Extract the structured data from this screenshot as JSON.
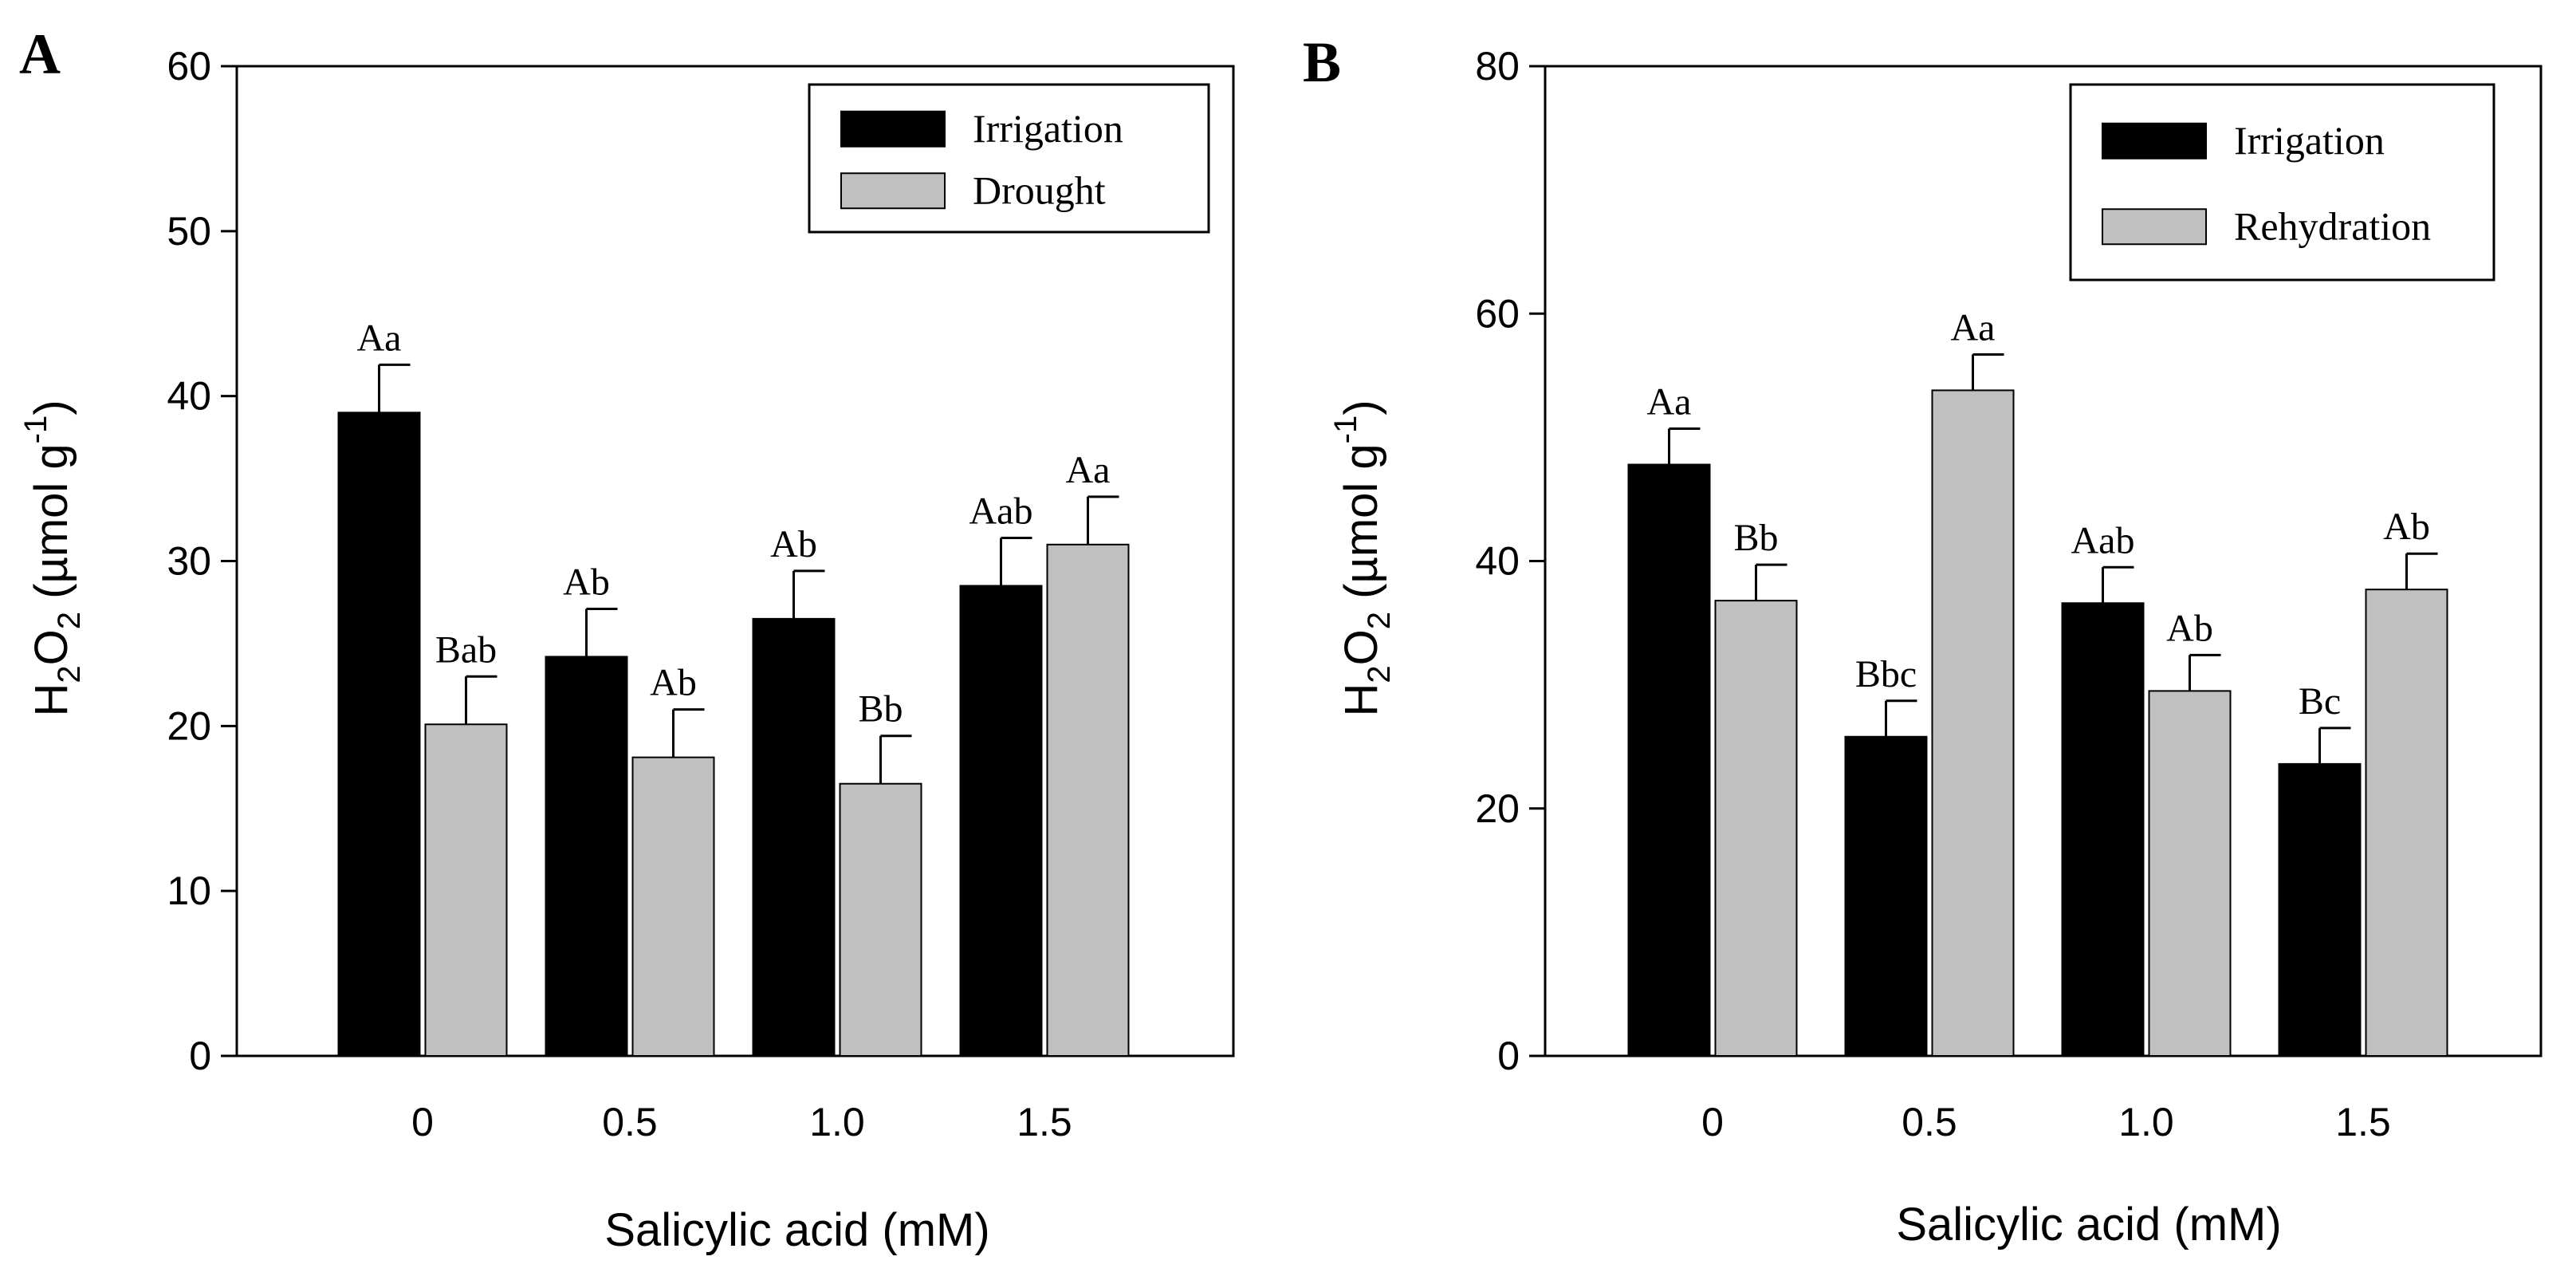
{
  "chart_data": [
    {
      "panel_label": "A",
      "type": "bar",
      "xlabel": "Salicylic acid (mM)",
      "ylabel": {
        "main": "H",
        "sub1": "2",
        "mid": "O",
        "sub2": "2",
        "unit": " (µmol g",
        "sup": "-1",
        "close": ")"
      },
      "ylim": [
        0,
        60
      ],
      "yticks": [
        0,
        10,
        20,
        30,
        40,
        50,
        60
      ],
      "categories": [
        "0",
        "0.5",
        "1.0",
        "1.5"
      ],
      "legend_position": "top-right",
      "series": [
        {
          "name": "Irrigation",
          "color": "#000000",
          "values": [
            39,
            24.2,
            26.5,
            28.5
          ],
          "errors": [
            2.9,
            2.9,
            2.9,
            2.9
          ],
          "labels": [
            "Aa",
            "Ab",
            "Ab",
            "Aab"
          ]
        },
        {
          "name": "Drought",
          "color": "#c0c0c0",
          "values": [
            20.1,
            18.1,
            16.5,
            31
          ],
          "errors": [
            2.9,
            2.9,
            2.9,
            2.9
          ],
          "labels": [
            "Bab",
            "Ab",
            "Bb",
            "Aa"
          ]
        }
      ]
    },
    {
      "panel_label": "B",
      "type": "bar",
      "xlabel": "Salicylic acid (mM)",
      "ylabel": {
        "main": "H",
        "sub1": "2",
        "mid": "O",
        "sub2": "2",
        "unit": " (µmol g",
        "sup": "-1",
        "close": ")"
      },
      "ylim": [
        0,
        80
      ],
      "yticks": [
        0,
        20,
        40,
        60,
        80
      ],
      "categories": [
        "0",
        "0.5",
        "1.0",
        "1.5"
      ],
      "legend_position": "top-right",
      "series": [
        {
          "name": "Irrigation",
          "color": "#000000",
          "values": [
            47.8,
            25.8,
            36.6,
            23.6
          ],
          "errors": [
            2.9,
            2.9,
            2.9,
            2.9
          ],
          "labels": [
            "Aa",
            "Bbc",
            "Aab",
            "Bc"
          ]
        },
        {
          "name": "Rehydration",
          "color": "#c0c0c0",
          "values": [
            36.8,
            53.8,
            29.5,
            37.7
          ],
          "errors": [
            2.9,
            2.9,
            2.9,
            2.9
          ],
          "labels": [
            "Bb",
            "Aa",
            "Ab",
            "Ab"
          ]
        }
      ]
    }
  ]
}
